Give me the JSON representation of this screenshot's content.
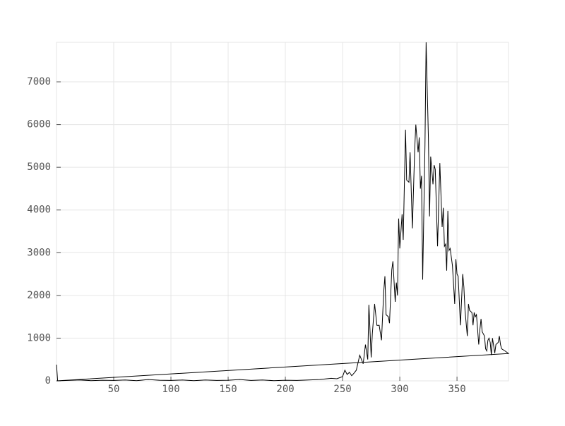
{
  "chart_data": {
    "type": "line",
    "x": [
      0,
      1,
      10,
      20,
      30,
      40,
      50,
      60,
      70,
      80,
      90,
      100,
      110,
      120,
      130,
      140,
      150,
      160,
      170,
      180,
      190,
      200,
      210,
      220,
      230,
      240,
      245,
      250,
      252,
      254,
      256,
      258,
      260,
      262,
      265,
      268,
      270,
      272,
      273,
      275,
      276,
      278,
      280,
      282,
      284,
      286,
      287,
      288,
      290,
      291,
      293,
      294,
      296,
      297,
      298,
      299,
      300,
      302,
      303,
      305,
      306,
      308,
      309,
      311,
      313,
      314,
      316,
      317,
      318,
      319,
      320,
      322,
      323,
      325,
      326,
      327,
      329,
      330,
      331,
      333,
      335,
      336,
      337,
      338,
      339,
      340,
      341,
      342,
      343,
      344,
      346,
      348,
      349,
      350,
      351,
      353,
      355,
      356,
      357,
      359,
      360,
      361,
      363,
      364,
      365,
      366,
      367,
      369,
      370,
      371,
      372,
      374,
      375,
      376,
      377,
      378,
      379,
      380,
      381,
      383,
      384,
      386,
      387,
      388,
      389,
      392,
      395,
      0
    ],
    "series": [
      {
        "color": "#000000",
        "values": [
          380,
          0,
          10,
          20,
          5,
          15,
          10,
          20,
          5,
          30,
          15,
          10,
          20,
          5,
          20,
          10,
          15,
          30,
          10,
          20,
          5,
          15,
          10,
          20,
          30,
          60,
          50,
          100,
          250,
          150,
          200,
          120,
          180,
          250,
          600,
          400,
          850,
          500,
          1780,
          550,
          1100,
          1800,
          1300,
          1300,
          950,
          2100,
          2450,
          1550,
          1500,
          1350,
          2600,
          2800,
          1850,
          2300,
          2000,
          3800,
          3100,
          3900,
          3300,
          5880,
          4700,
          4650,
          5350,
          3570,
          5400,
          6000,
          5350,
          5700,
          4500,
          4800,
          2370,
          5500,
          7925,
          5700,
          3850,
          5250,
          4600,
          5050,
          4950,
          3150,
          5100,
          4350,
          3600,
          4050,
          3150,
          3200,
          2580,
          3980,
          3050,
          3100,
          2700,
          1800,
          2850,
          2500,
          2450,
          1300,
          2500,
          2200,
          1650,
          1050,
          1800,
          1650,
          1600,
          1300,
          1600,
          1500,
          1550,
          850,
          1200,
          1450,
          1150,
          1050,
          750,
          700,
          950,
          1000,
          900,
          600,
          1000,
          650,
          850,
          900,
          1050,
          850,
          750,
          700,
          640,
          0
        ]
      }
    ],
    "xlim": [
      0,
      395
    ],
    "ylim": [
      0,
      7925
    ],
    "xticks": [
      50,
      100,
      150,
      200,
      250,
      300,
      350
    ],
    "yticks": [
      0,
      1000,
      2000,
      3000,
      4000,
      5000,
      6000,
      7000
    ],
    "grid": true
  }
}
